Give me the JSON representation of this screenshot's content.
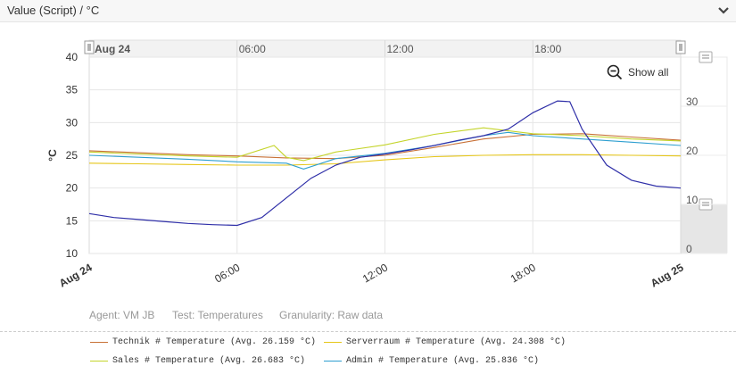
{
  "header": {
    "title": "Value (Script) / °C"
  },
  "show_all_label": "Show all",
  "meta": {
    "agent": "Agent: VM JB",
    "test": "Test: Temperatures",
    "granularity": "Granularity: Raw data"
  },
  "navigator": {
    "start_label": "Aug 24",
    "ticks": [
      "06:00",
      "12:00",
      "18:00"
    ],
    "yticks": [
      "30",
      "20",
      "10",
      "0"
    ]
  },
  "colors": {
    "technik": "#c87137",
    "serverraum": "#e6c619",
    "sales": "#c4d42a",
    "admin": "#2e9fd0",
    "extra": "#2f2fa8"
  },
  "chart_data": {
    "type": "line",
    "title": "",
    "ylabel": "°C",
    "ylim": [
      10,
      40
    ],
    "yticks": [
      10,
      15,
      20,
      25,
      30,
      35,
      40
    ],
    "xlim": [
      "Aug 24 00:00",
      "Aug 25 00:00"
    ],
    "xticks": [
      "Aug 24",
      "06:00",
      "12:00",
      "18:00",
      "Aug 25"
    ],
    "grid": true,
    "legend_position": "bottom",
    "series": [
      {
        "name": "Technik # Temperature (Avg. 26.159 °C)",
        "color": "#c87137",
        "x": [
          0,
          2,
          4,
          6,
          8,
          10,
          12,
          14,
          16,
          18,
          20,
          22,
          24
        ],
        "y": [
          25.7,
          25.4,
          25.1,
          24.9,
          24.6,
          24.5,
          25.0,
          26.2,
          27.5,
          28.2,
          28.3,
          27.8,
          27.3
        ]
      },
      {
        "name": "Serverraum # Temperature (Avg. 24.308 °C)",
        "color": "#e6c619",
        "x": [
          0,
          2,
          4,
          6,
          8,
          10,
          12,
          14,
          16,
          18,
          20,
          22,
          24
        ],
        "y": [
          23.8,
          23.7,
          23.6,
          23.5,
          23.5,
          23.7,
          24.3,
          24.8,
          25.0,
          25.1,
          25.1,
          25.0,
          24.9
        ]
      },
      {
        "name": "Sales # Temperature (Avg. 26.683 °C)",
        "color": "#c4d42a",
        "x": [
          0,
          2,
          4,
          6,
          7.5,
          8,
          8.7,
          10,
          12,
          14,
          16,
          18,
          20,
          22,
          24
        ],
        "y": [
          25.5,
          25.2,
          24.9,
          24.7,
          26.5,
          24.7,
          24.2,
          25.5,
          26.6,
          28.2,
          29.2,
          28.3,
          28.0,
          27.5,
          27.2
        ]
      },
      {
        "name": "Admin # Temperature (Avg. 25.836 °C)",
        "color": "#2e9fd0",
        "x": [
          0,
          2,
          4,
          6,
          8,
          8.7,
          10,
          12,
          14,
          16,
          17,
          18,
          20,
          22,
          24
        ],
        "y": [
          25.0,
          24.7,
          24.4,
          24.0,
          23.8,
          22.9,
          24.5,
          25.3,
          26.5,
          28.0,
          28.5,
          28.0,
          27.5,
          27.0,
          26.5
        ]
      },
      {
        "color": "#2f2fa8",
        "x": [
          0,
          1,
          2,
          3,
          4,
          5,
          6,
          7,
          8,
          9,
          10,
          11,
          12,
          13,
          14,
          15,
          16,
          17,
          18,
          19,
          19.5,
          20,
          21,
          22,
          23,
          24
        ],
        "y": [
          16.1,
          15.5,
          15.2,
          14.9,
          14.6,
          14.4,
          14.3,
          15.5,
          18.5,
          21.5,
          23.5,
          24.7,
          25.2,
          25.8,
          26.5,
          27.3,
          28.0,
          29.0,
          31.5,
          33.3,
          33.2,
          29.0,
          23.5,
          21.2,
          20.3,
          20.0
        ]
      }
    ]
  },
  "legend": [
    {
      "label": "Technik # Temperature (Avg. 26.159 °C)",
      "color": "#c87137"
    },
    {
      "label": "Serverraum # Temperature (Avg. 24.308 °C)",
      "color": "#e6c619"
    },
    {
      "label": "Sales # Temperature (Avg. 26.683 °C)",
      "color": "#c4d42a"
    },
    {
      "label": "Admin # Temperature (Avg. 25.836 °C)",
      "color": "#2e9fd0"
    }
  ]
}
